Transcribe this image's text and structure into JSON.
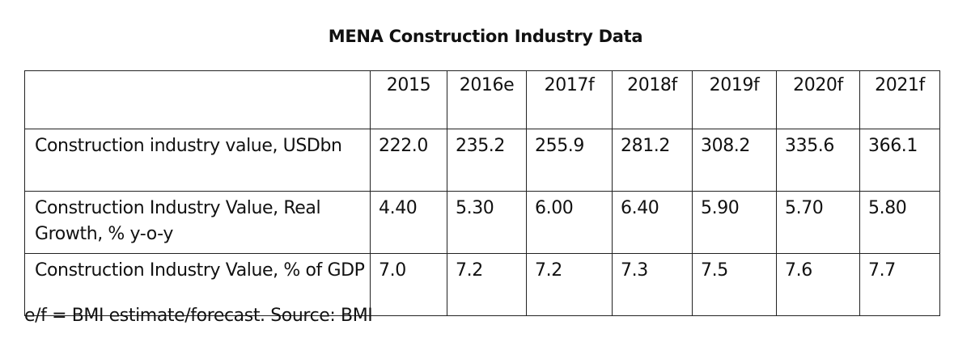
{
  "chart_data": {
    "type": "table",
    "title": "MENA Construction Industry Data",
    "columns": [
      "2015",
      "2016e",
      "2017f",
      "2018f",
      "2019f",
      "2020f",
      "2021f"
    ],
    "rows": [
      {
        "label": "Construction industry value, USDbn",
        "values": [
          "222.0",
          "235.2",
          "255.9",
          "281.2",
          "308.2",
          "335.6",
          "366.1"
        ]
      },
      {
        "label": "Construction Industry Value, Real Growth, % y-o-y",
        "values": [
          "4.40",
          "5.30",
          "6.00",
          "6.40",
          "5.90",
          "5.70",
          "5.80"
        ]
      },
      {
        "label": "Construction Industry Value, % of GDP",
        "values": [
          "7.0",
          "7.2",
          "7.2",
          "7.3",
          "7.5",
          "7.6",
          "7.7"
        ]
      }
    ],
    "note": "e/f = BMI estimate/forecast. Source: BMI"
  }
}
